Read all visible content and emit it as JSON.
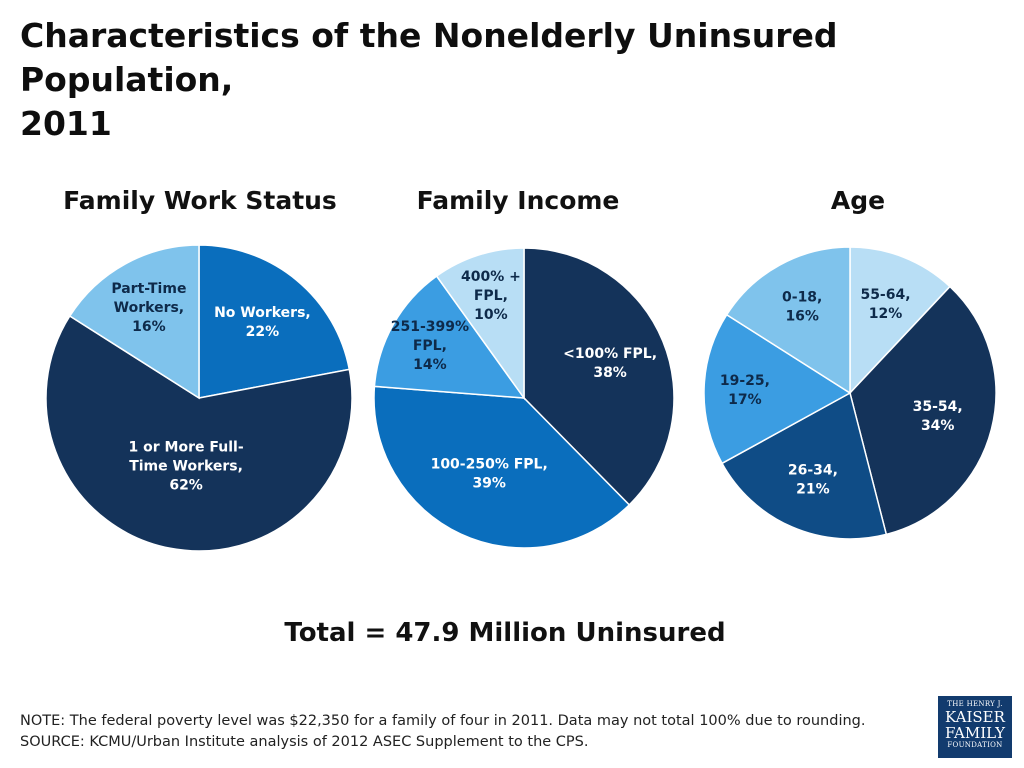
{
  "title_line1": "Characteristics of the Nonelderly Uninsured Population,",
  "title_line2": "2011",
  "total_text": "Total = 47.9 Million Uninsured",
  "note": "NOTE: The federal poverty level was $22,350 for a family of four in 2011. Data may not total 100% due to rounding.",
  "source": "SOURCE: KCMU/Urban Institute analysis of 2012 ASEC Supplement to the CPS.",
  "logo": {
    "line1": "THE HENRY J.",
    "line2": "KAISER",
    "line3": "FAMILY",
    "line4": "FOUNDATION"
  },
  "chart_data": [
    {
      "type": "pie",
      "title": "Family Work Status",
      "slices": [
        {
          "label": [
            "No Workers,",
            "22%"
          ],
          "value": 22,
          "color": "#0a6ebd",
          "text_color": "#ffffff"
        },
        {
          "label": [
            "1 or More Full-",
            "Time Workers,",
            "62%"
          ],
          "value": 62,
          "color": "#14335a",
          "text_color": "#ffffff"
        },
        {
          "label": [
            "Part-Time",
            "Workers,",
            "16%"
          ],
          "value": 16,
          "color": "#7fc3ec",
          "text_color": "#0e2a4a"
        }
      ]
    },
    {
      "type": "pie",
      "title": "Family Income",
      "slices": [
        {
          "label": [
            "<100% FPL,",
            "38%"
          ],
          "value": 38,
          "color": "#14335a",
          "text_color": "#ffffff"
        },
        {
          "label": [
            "100-250% FPL,",
            "39%"
          ],
          "value": 39,
          "color": "#0a6ebd",
          "text_color": "#ffffff"
        },
        {
          "label": [
            "251-399%",
            "FPL,",
            "14%"
          ],
          "value": 14,
          "color": "#3b9de2",
          "text_color": "#0e2a4a"
        },
        {
          "label": [
            "400% +",
            "FPL,",
            "10%"
          ],
          "value": 10,
          "color": "#b8def5",
          "text_color": "#0e2a4a"
        }
      ]
    },
    {
      "type": "pie",
      "title": "Age",
      "slices": [
        {
          "label": [
            "55-64,",
            "12%"
          ],
          "value": 12,
          "color": "#b8def5",
          "text_color": "#0e2a4a"
        },
        {
          "label": [
            "35-54,",
            "34%"
          ],
          "value": 34,
          "color": "#14335a",
          "text_color": "#ffffff"
        },
        {
          "label": [
            "26-34,",
            "21%"
          ],
          "value": 21,
          "color": "#0f4c86",
          "text_color": "#ffffff"
        },
        {
          "label": [
            "19-25,",
            "17%"
          ],
          "value": 17,
          "color": "#3b9de2",
          "text_color": "#0e2a4a"
        },
        {
          "label": [
            "0-18,",
            "16%"
          ],
          "value": 16,
          "color": "#7fc3ec",
          "text_color": "#0e2a4a"
        }
      ]
    }
  ]
}
